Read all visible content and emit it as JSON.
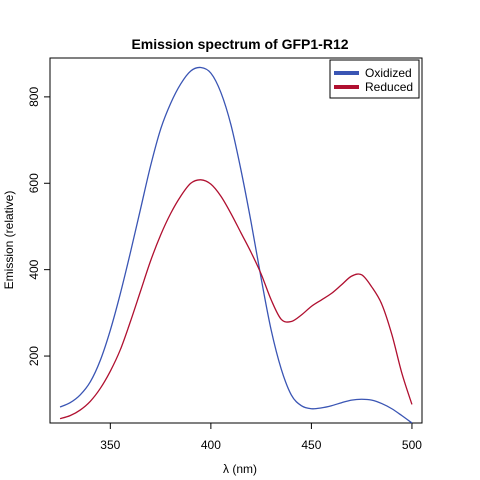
{
  "chart_data": {
    "type": "line",
    "title": "Emission spectrum of GFP1-R12",
    "xlabel_symbol": "λ",
    "xlabel_unit": " (nm)",
    "ylabel": "Emission (relative)",
    "xlim": [
      320,
      505
    ],
    "ylim": [
      45,
      890
    ],
    "x_ticks": [
      350,
      400,
      450,
      500
    ],
    "y_ticks": [
      200,
      400,
      600,
      800
    ],
    "grid": false,
    "legend_position": "top-right",
    "series": [
      {
        "name": "Oxidized",
        "color": "#3a55b4",
        "points": [
          [
            325,
            82
          ],
          [
            330,
            92
          ],
          [
            335,
            110
          ],
          [
            340,
            140
          ],
          [
            345,
            190
          ],
          [
            350,
            260
          ],
          [
            355,
            345
          ],
          [
            360,
            440
          ],
          [
            365,
            540
          ],
          [
            370,
            640
          ],
          [
            375,
            725
          ],
          [
            380,
            785
          ],
          [
            385,
            830
          ],
          [
            390,
            860
          ],
          [
            395,
            868
          ],
          [
            400,
            855
          ],
          [
            405,
            810
          ],
          [
            410,
            735
          ],
          [
            415,
            630
          ],
          [
            420,
            510
          ],
          [
            425,
            380
          ],
          [
            430,
            260
          ],
          [
            435,
            170
          ],
          [
            440,
            110
          ],
          [
            445,
            85
          ],
          [
            450,
            78
          ],
          [
            455,
            80
          ],
          [
            460,
            85
          ],
          [
            465,
            92
          ],
          [
            470,
            98
          ],
          [
            475,
            100
          ],
          [
            480,
            98
          ],
          [
            485,
            90
          ],
          [
            490,
            78
          ],
          [
            495,
            62
          ],
          [
            500,
            45
          ]
        ]
      },
      {
        "name": "Reduced",
        "color": "#b01030",
        "points": [
          [
            325,
            55
          ],
          [
            330,
            62
          ],
          [
            335,
            75
          ],
          [
            340,
            95
          ],
          [
            345,
            125
          ],
          [
            350,
            165
          ],
          [
            355,
            215
          ],
          [
            360,
            280
          ],
          [
            365,
            350
          ],
          [
            370,
            420
          ],
          [
            375,
            480
          ],
          [
            380,
            530
          ],
          [
            385,
            570
          ],
          [
            390,
            600
          ],
          [
            395,
            608
          ],
          [
            400,
            598
          ],
          [
            405,
            570
          ],
          [
            410,
            530
          ],
          [
            415,
            485
          ],
          [
            420,
            440
          ],
          [
            425,
            390
          ],
          [
            430,
            330
          ],
          [
            435,
            285
          ],
          [
            440,
            280
          ],
          [
            445,
            295
          ],
          [
            450,
            315
          ],
          [
            455,
            330
          ],
          [
            460,
            345
          ],
          [
            465,
            365
          ],
          [
            470,
            385
          ],
          [
            475,
            388
          ],
          [
            480,
            360
          ],
          [
            485,
            320
          ],
          [
            490,
            250
          ],
          [
            495,
            160
          ],
          [
            500,
            88
          ]
        ]
      }
    ]
  }
}
